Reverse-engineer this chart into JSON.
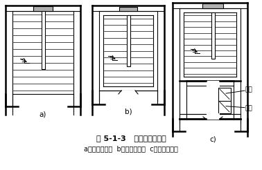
{
  "title": "图 5-1-3   楼梯间平面形式",
  "subtitle": "a）开敞楼梯间  b）封闭楼梯间  c）防烟楼梯间",
  "labels": [
    "a)",
    "b)",
    "c)"
  ],
  "annotation_paifeng": "排风",
  "annotation_songfeng": "送风",
  "bg_color": "#ffffff",
  "line_color": "#000000",
  "gray_fill": "#b0b0b0",
  "title_fontsize": 8.0,
  "subtitle_fontsize": 7.0,
  "label_fontsize": 7.5
}
